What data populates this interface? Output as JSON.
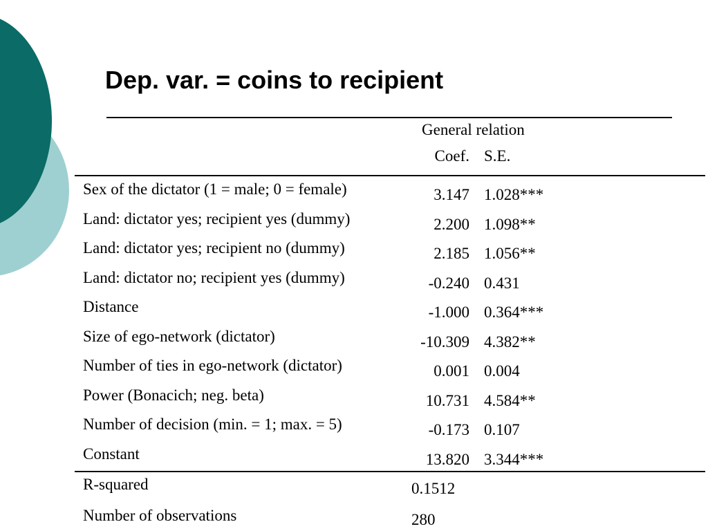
{
  "title": "Dep. var. = coins to recipient",
  "colors": {
    "deco_dark": "#0b6b66",
    "deco_light": "#9fd0d1"
  },
  "table": {
    "group_header": "General relation",
    "columns": {
      "coef": "Coef.",
      "se": "S.E."
    },
    "rows": [
      {
        "label": "Sex of the dictator (1 = male; 0 = female)",
        "coef": "3.147",
        "se": "1.028***"
      },
      {
        "label": "Land: dictator yes; recipient yes (dummy)",
        "coef": "2.200",
        "se": "1.098**"
      },
      {
        "label": "Land: dictator yes; recipient no (dummy)",
        "coef": "2.185",
        "se": "1.056**"
      },
      {
        "label": "Land: dictator no; recipient yes (dummy)",
        "coef": "-0.240",
        "se": "0.431"
      },
      {
        "label": "Distance",
        "coef": "-1.000",
        "se": "0.364***"
      },
      {
        "label": "Size of ego-network (dictator)",
        "coef": "-10.309",
        "se": "4.382**"
      },
      {
        "label": "Number of ties in ego-network (dictator)",
        "coef": "0.001",
        "se": "0.004"
      },
      {
        "label": "Power (Bonacich; neg. beta)",
        "coef": "10.731",
        "se": "4.584**"
      },
      {
        "label": "Number of decision (min. = 1; max. = 5)",
        "coef": "-0.173",
        "se": "0.107"
      },
      {
        "label": "Constant",
        "coef": "13.820",
        "se": "3.344***"
      }
    ],
    "stats": [
      {
        "label": "R-squared",
        "value": "0.1512"
      },
      {
        "label": "Number of observations",
        "value": "280"
      }
    ]
  }
}
